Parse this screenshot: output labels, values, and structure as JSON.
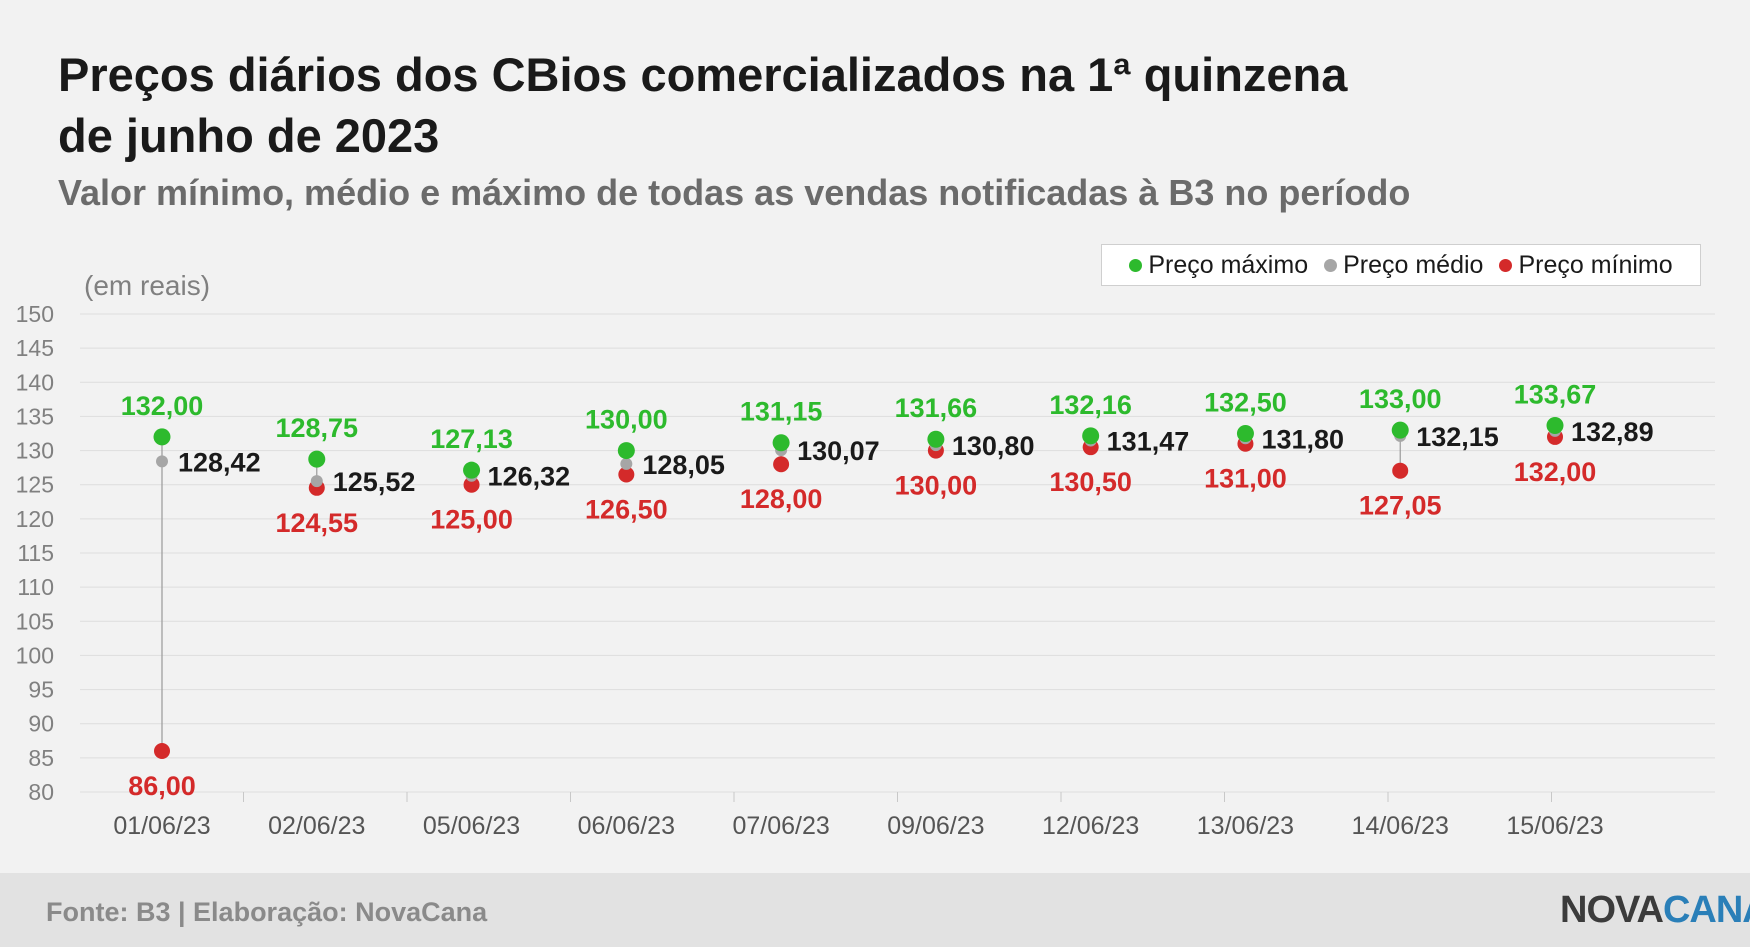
{
  "title_lines": [
    "Preços diários dos CBios comercializados na 1ª quinzena",
    "de junho de 2023"
  ],
  "subtitle": "Valor mínimo, médio e máximo de todas as vendas notificadas à B3 no período",
  "unit_label": "(em reais)",
  "legend": [
    {
      "label": "Preço máximo",
      "color": "#2dba2d"
    },
    {
      "label": "Preço médio",
      "color": "#a6a6a6"
    },
    {
      "label": "Preço mínimo",
      "color": "#d42a2a"
    }
  ],
  "footer": {
    "source": "Fonte: B3 | Elaboração: NovaCana",
    "logo_part1": "NOVA",
    "logo_part2": "CANA"
  },
  "colors": {
    "max": "#2dba2d",
    "avg": "#a6a6a6",
    "min": "#d42a2a",
    "avg_label": "#1a1a1a",
    "grid": "#dddddd",
    "axis_text": "#808080"
  },
  "chart_data": {
    "type": "scatter",
    "x": [
      "01/06/23",
      "02/06/23",
      "05/06/23",
      "06/06/23",
      "07/06/23",
      "09/06/23",
      "12/06/23",
      "13/06/23",
      "14/06/23",
      "15/06/23"
    ],
    "series": [
      {
        "name": "Preço máximo",
        "values": [
          132.0,
          128.75,
          127.13,
          130.0,
          131.15,
          131.66,
          132.16,
          132.5,
          133.0,
          133.67
        ],
        "labels": [
          "132,00",
          "128,75",
          "127,13",
          "130,00",
          "131,15",
          "131,66",
          "132,16",
          "132,50",
          "133,00",
          "133,67"
        ]
      },
      {
        "name": "Preço médio",
        "values": [
          128.42,
          125.52,
          126.32,
          128.05,
          130.07,
          130.8,
          131.47,
          131.8,
          132.15,
          132.89
        ],
        "labels": [
          "128,42",
          "125,52",
          "126,32",
          "128,05",
          "130,07",
          "130,80",
          "131,47",
          "131,80",
          "132,15",
          "132,89"
        ]
      },
      {
        "name": "Preço mínimo",
        "values": [
          86.0,
          124.55,
          125.0,
          126.5,
          128.0,
          130.0,
          130.5,
          131.0,
          127.05,
          132.0
        ],
        "labels": [
          "86,00",
          "124,55",
          "125,00",
          "126,50",
          "128,00",
          "130,00",
          "130,50",
          "131,00",
          "127,05",
          "132,00"
        ]
      }
    ],
    "yticks": [
      150,
      145,
      140,
      135,
      130,
      125,
      120,
      115,
      110,
      105,
      100,
      95,
      90,
      85,
      80
    ],
    "ylim": [
      80,
      150
    ],
    "grid": true,
    "legend_position": "top-right"
  }
}
